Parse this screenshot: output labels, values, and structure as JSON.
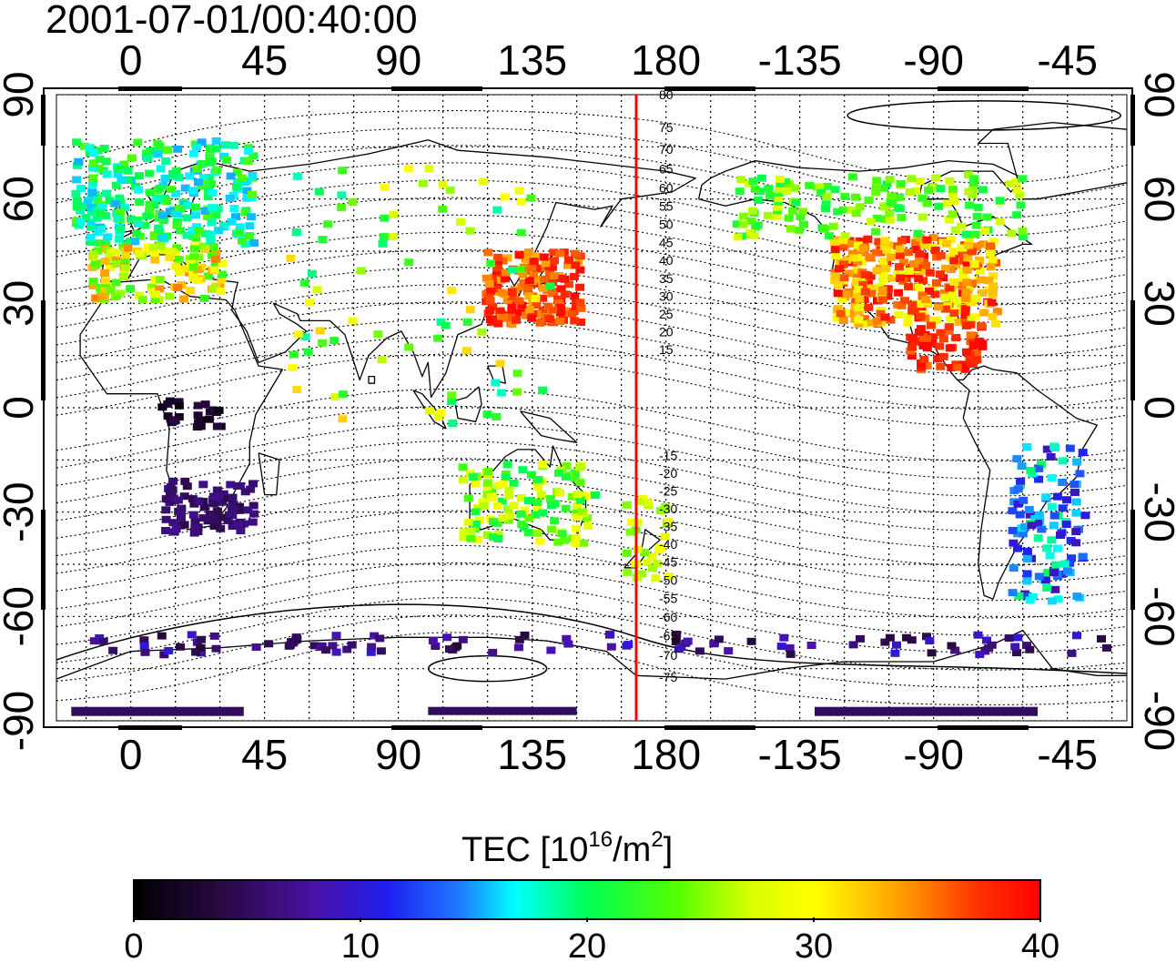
{
  "timestamp": "2001-07-01/00:40:00",
  "x_ticks": [
    "0",
    "45",
    "90",
    "135",
    "180",
    "-135",
    "-90",
    "-45"
  ],
  "y_ticks": [
    "90",
    "60",
    "30",
    "0",
    "-30",
    "-60",
    "-90"
  ],
  "mag_lat_labels_north": [
    "80",
    "75",
    "70",
    "65",
    "60",
    "55",
    "50",
    "45",
    "40",
    "35",
    "30",
    "25",
    "20",
    "15"
  ],
  "mag_lat_labels_south": [
    "-15",
    "-20",
    "-25",
    "-30",
    "-35",
    "-40",
    "-45",
    "-50",
    "-55",
    "-60",
    "-65",
    "-70",
    "-75"
  ],
  "colorbar": {
    "label_prefix": "TEC  [10",
    "label_exp": "16",
    "label_mid": "/m",
    "label_exp2": "2",
    "label_suffix": "]",
    "ticks": [
      "0",
      "10",
      "20",
      "30",
      "40"
    ],
    "min": 0,
    "max": 40
  },
  "meridian_line": {
    "lon": 170,
    "color": "#ff0000"
  },
  "map": {
    "lon_range": [
      -25,
      335
    ],
    "lat_range": [
      -90,
      90
    ]
  }
}
